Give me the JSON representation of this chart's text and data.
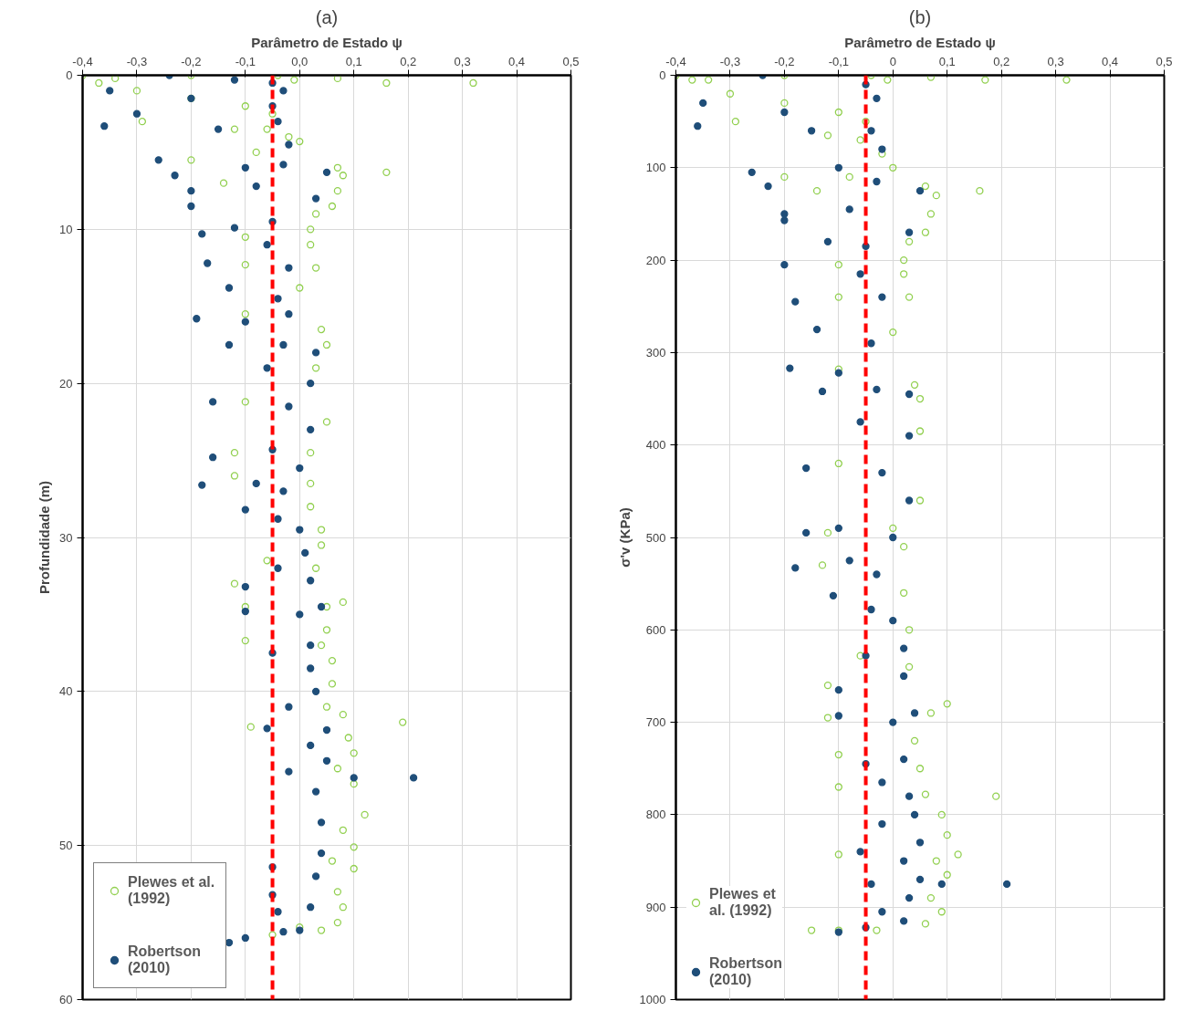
{
  "chart_data": [
    {
      "type": "scatter",
      "title": "(a)",
      "xlabel": "Parâmetro de Estado ψ",
      "ylabel": "Profundidade (m)",
      "xlim": [
        -0.4,
        0.5
      ],
      "ylim": [
        60,
        0
      ],
      "xticks": [
        {
          "value": -0.4,
          "label": "-0,4"
        },
        {
          "value": -0.3,
          "label": "-0,3"
        },
        {
          "value": -0.2,
          "label": "-0,2"
        },
        {
          "value": -0.1,
          "label": "-0,1"
        },
        {
          "value": 0,
          "label": "0,0"
        },
        {
          "value": 0.1,
          "label": "0,1"
        },
        {
          "value": 0.2,
          "label": "0,2"
        },
        {
          "value": 0.3,
          "label": "0,3"
        },
        {
          "value": 0.4,
          "label": "0,4"
        },
        {
          "value": 0.5,
          "label": "0,5"
        }
      ],
      "yticks": [
        0,
        10,
        20,
        30,
        40,
        50,
        60
      ],
      "grid": true,
      "legend": "bottom left",
      "marker": "circle",
      "ref_lines": [
        {
          "axis": "x",
          "value": -0.05,
          "label": null,
          "color": "#ff0000",
          "line_style": "dashed"
        }
      ],
      "series": [
        {
          "name": "Plewes et al.\n(1992)",
          "color": "#92d050",
          "x": [
            -0.4,
            -0.34,
            -0.2,
            -0.04,
            -0.01,
            0.07,
            0.16,
            0.32,
            -0.37,
            -0.3,
            -0.2,
            -0.1,
            -0.05,
            -0.29,
            -0.12,
            -0.06,
            -0.02,
            0.0,
            -0.2,
            -0.08,
            0.07,
            0.08,
            0.16,
            0.07,
            0.06,
            -0.14,
            0.03,
            0.02,
            -0.1,
            0.02,
            0.03,
            -0.1,
            0.0,
            -0.1,
            0.04,
            0.05,
            0.03,
            -0.1,
            0.05,
            -0.12,
            0.02,
            0.02,
            -0.12,
            0.02,
            0.04,
            0.04,
            -0.06,
            0.03,
            -0.12,
            0.08,
            0.05,
            -0.1,
            0.05,
            -0.1,
            0.04,
            0.06,
            0.06,
            0.05,
            0.08,
            -0.09,
            0.19,
            0.09,
            0.1,
            0.07,
            0.1,
            0.12,
            0.08,
            0.1,
            0.06,
            0.1,
            0.07,
            0.08,
            0.07,
            0.04,
            -0.05,
            0.0
          ],
          "values": [
            0,
            0.2,
            0,
            0,
            0.3,
            0.2,
            0.5,
            0.5,
            0.5,
            1,
            1.5,
            2,
            2.5,
            3,
            3.5,
            3.5,
            4,
            4.3,
            5.5,
            5,
            6,
            6.5,
            6.3,
            7.5,
            8.5,
            7,
            9,
            10,
            10.5,
            11,
            12.5,
            12.3,
            13.8,
            15.5,
            16.5,
            17.5,
            19,
            21.2,
            22.5,
            24.5,
            24.5,
            26.5,
            26,
            28,
            29.5,
            30.5,
            31.5,
            32,
            33,
            34.2,
            34.5,
            34.5,
            36,
            36.7,
            37,
            38,
            39.5,
            41,
            41.5,
            42.3,
            42,
            43,
            44,
            45,
            46,
            48,
            49,
            50.1,
            51,
            51.5,
            53,
            54,
            55,
            55.5,
            55.8,
            55.3
          ]
        },
        {
          "name": "Robertson\n(2010)",
          "color": "#1f4e79",
          "x": [
            -0.24,
            -0.12,
            -0.05,
            -0.03,
            -0.35,
            -0.2,
            -0.05,
            -0.3,
            -0.36,
            -0.15,
            -0.04,
            -0.02,
            -0.26,
            -0.1,
            -0.23,
            -0.03,
            0.05,
            -0.2,
            -0.08,
            0.03,
            -0.2,
            -0.05,
            -0.12,
            -0.18,
            -0.06,
            -0.17,
            -0.02,
            -0.13,
            -0.04,
            -0.02,
            -0.19,
            -0.1,
            -0.13,
            -0.03,
            0.03,
            -0.06,
            0.02,
            -0.16,
            -0.02,
            0.02,
            -0.05,
            -0.16,
            0.0,
            -0.18,
            -0.08,
            -0.03,
            -0.1,
            -0.04,
            0.0,
            0.01,
            -0.04,
            -0.1,
            0.02,
            0.04,
            -0.1,
            0.0,
            0.02,
            -0.05,
            0.02,
            0.03,
            -0.02,
            0.05,
            -0.06,
            0.02,
            0.05,
            -0.02,
            0.1,
            0.21,
            0.03,
            0.04,
            0.04,
            -0.05,
            0.03,
            -0.05,
            0.02,
            -0.04,
            0.0,
            -0.03,
            -0.1,
            -0.13
          ],
          "values": [
            0,
            0.3,
            0.5,
            1,
            1,
            1.5,
            2,
            2.5,
            3.3,
            3.5,
            3,
            4.5,
            5.5,
            6,
            6.5,
            5.8,
            6.3,
            7.5,
            7.2,
            8,
            8.5,
            9.5,
            9.9,
            10.3,
            11,
            12.2,
            12.5,
            13.8,
            14.5,
            15.5,
            15.8,
            16,
            17.5,
            17.5,
            18,
            19,
            20,
            21.2,
            21.5,
            23,
            24.3,
            24.8,
            25.5,
            26.6,
            26.5,
            27,
            28.2,
            28.8,
            29.5,
            31,
            32,
            33.2,
            32.8,
            34.5,
            34.8,
            35,
            37,
            37.5,
            38.5,
            40,
            41,
            42.5,
            42.4,
            43.5,
            44.5,
            45.2,
            45.6,
            45.6,
            46.5,
            48.5,
            50.5,
            51.4,
            52,
            53.2,
            54,
            54.3,
            55.5,
            55.6,
            56,
            56.3
          ]
        }
      ]
    },
    {
      "type": "scatter",
      "title": "(b)",
      "xlabel": "Parâmetro de Estado ψ",
      "ylabel": "σ'v (KPa)",
      "xlim": [
        -0.4,
        0.5
      ],
      "ylim": [
        1000,
        0
      ],
      "xticks": [
        {
          "value": -0.4,
          "label": "-0,4"
        },
        {
          "value": -0.3,
          "label": "-0,3"
        },
        {
          "value": -0.2,
          "label": "-0,2"
        },
        {
          "value": -0.1,
          "label": "-0,1"
        },
        0,
        {
          "value": 0.1,
          "label": "0,1"
        },
        {
          "value": 0.2,
          "label": "0,2"
        },
        {
          "value": 0.3,
          "label": "0,3"
        },
        {
          "value": 0.4,
          "label": "0,4"
        },
        {
          "value": 0.5,
          "label": "0,5"
        }
      ],
      "yticks": [
        0,
        100,
        200,
        300,
        400,
        500,
        600,
        700,
        800,
        900,
        1000
      ],
      "grid": true,
      "legend": "bottom left",
      "marker": "circle",
      "ref_lines": [
        {
          "axis": "x",
          "value": -0.05,
          "label": null,
          "color": "#ff0000",
          "line_style": "dashed"
        }
      ],
      "series": [
        {
          "name": "Plewes et\nal. (1992)",
          "color": "#92d050",
          "x": [
            -0.4,
            -0.34,
            -0.2,
            -0.04,
            -0.01,
            0.07,
            0.17,
            0.32,
            -0.37,
            -0.3,
            -0.2,
            -0.1,
            -0.05,
            -0.29,
            -0.12,
            -0.06,
            -0.02,
            0.0,
            -0.2,
            -0.08,
            0.06,
            0.08,
            0.16,
            0.07,
            0.06,
            -0.14,
            0.03,
            0.02,
            -0.1,
            0.02,
            0.03,
            -0.1,
            0.0,
            -0.1,
            0.04,
            0.05,
            0.05,
            -0.1,
            0.05,
            -0.12,
            0.0,
            0.02,
            -0.13,
            0.02,
            0.03,
            -0.06,
            0.03,
            -0.12,
            0.1,
            0.07,
            -0.12,
            0.04,
            -0.1,
            0.05,
            -0.1,
            0.06,
            0.19,
            0.09,
            0.1,
            -0.1,
            0.12,
            0.08,
            0.1,
            0.07,
            0.09,
            0.06,
            -0.03,
            -0.15,
            -0.1
          ],
          "values": [
            0,
            5,
            0,
            0,
            5,
            2,
            5,
            5,
            5,
            20,
            30,
            40,
            50,
            50,
            65,
            70,
            85,
            100,
            110,
            110,
            120,
            130,
            125,
            150,
            170,
            125,
            180,
            200,
            205,
            215,
            240,
            240,
            278,
            318,
            335,
            350,
            385,
            420,
            460,
            495,
            490,
            510,
            530,
            560,
            600,
            628,
            640,
            660,
            680,
            690,
            695,
            720,
            735,
            750,
            770,
            778,
            780,
            800,
            822,
            843,
            843,
            850,
            865,
            890,
            905,
            918,
            925,
            925,
            925
          ]
        },
        {
          "name": "Robertson\n(2010)",
          "color": "#1f4e79",
          "x": [
            -0.24,
            -0.05,
            -0.03,
            -0.35,
            -0.2,
            -0.36,
            -0.15,
            -0.04,
            -0.02,
            -0.26,
            -0.1,
            -0.23,
            -0.03,
            0.05,
            -0.2,
            -0.08,
            0.03,
            -0.2,
            -0.05,
            -0.12,
            -0.2,
            -0.06,
            -0.18,
            -0.02,
            -0.14,
            -0.04,
            -0.19,
            -0.1,
            -0.13,
            -0.03,
            0.03,
            -0.06,
            0.03,
            -0.16,
            -0.02,
            0.03,
            -0.1,
            -0.16,
            0.0,
            -0.18,
            -0.08,
            -0.03,
            -0.11,
            -0.04,
            0.0,
            0.02,
            -0.05,
            -0.1,
            0.02,
            0.04,
            -0.1,
            0.0,
            0.02,
            -0.05,
            -0.02,
            0.03,
            0.04,
            -0.02,
            0.05,
            -0.06,
            0.02,
            0.05,
            -0.04,
            0.09,
            0.21,
            0.03,
            -0.02,
            0.02,
            -0.05,
            -0.1
          ],
          "values": [
            0,
            10,
            25,
            30,
            40,
            55,
            60,
            60,
            80,
            105,
            100,
            120,
            115,
            125,
            150,
            145,
            170,
            157,
            185,
            180,
            205,
            215,
            245,
            240,
            275,
            290,
            317,
            322,
            342,
            340,
            345,
            375,
            390,
            425,
            430,
            460,
            490,
            495,
            500,
            533,
            525,
            540,
            563,
            578,
            590,
            620,
            628,
            665,
            650,
            690,
            693,
            700,
            740,
            745,
            765,
            780,
            800,
            810,
            830,
            840,
            850,
            870,
            875,
            875,
            875,
            890,
            905,
            915,
            922,
            927
          ]
        }
      ]
    }
  ]
}
